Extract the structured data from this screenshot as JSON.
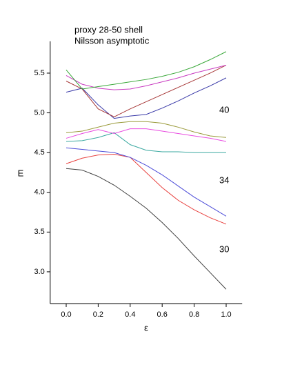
{
  "chart_data": {
    "type": "line",
    "title_lines": [
      "proxy 28-50 shell",
      "Nilsson asymptotic"
    ],
    "xlabel": "ε",
    "ylabel": "E",
    "annotations": [
      "40",
      "34",
      "30"
    ],
    "x": [
      0,
      0.1,
      0.2,
      0.3,
      0.4,
      0.5,
      0.6,
      0.7,
      0.8,
      0.9,
      1.0
    ],
    "series": [
      {
        "color": "#404040",
        "values": [
          4.3,
          4.28,
          4.2,
          4.09,
          3.95,
          3.8,
          3.62,
          3.42,
          3.2,
          2.99,
          2.78
        ]
      },
      {
        "color": "#e8413f",
        "values": [
          4.36,
          4.43,
          4.47,
          4.48,
          4.44,
          4.25,
          4.06,
          3.9,
          3.78,
          3.68,
          3.6
        ]
      },
      {
        "color": "#4b4bd8",
        "values": [
          4.56,
          4.54,
          4.52,
          4.5,
          4.44,
          4.34,
          4.22,
          4.08,
          3.94,
          3.82,
          3.7
        ]
      },
      {
        "color": "#3aa8a0",
        "values": [
          4.64,
          4.65,
          4.69,
          4.75,
          4.6,
          4.53,
          4.51,
          4.51,
          4.5,
          4.5,
          4.5
        ]
      },
      {
        "color": "#e84ae0",
        "values": [
          4.68,
          4.74,
          4.79,
          4.74,
          4.8,
          4.8,
          4.77,
          4.74,
          4.71,
          4.68,
          4.64
        ]
      },
      {
        "color": "#9a9a3a",
        "values": [
          4.75,
          4.77,
          4.82,
          4.87,
          4.89,
          4.89,
          4.87,
          4.82,
          4.76,
          4.71,
          4.69
        ]
      },
      {
        "color": "#3a3aa8",
        "values": [
          5.26,
          5.31,
          5.1,
          4.93,
          4.96,
          4.98,
          5.06,
          5.15,
          5.25,
          5.34,
          5.44
        ]
      },
      {
        "color": "#a83a3a",
        "values": [
          5.4,
          5.3,
          5.05,
          4.95,
          5.05,
          5.14,
          5.23,
          5.32,
          5.41,
          5.5,
          5.6
        ]
      },
      {
        "color": "#c83ac0",
        "values": [
          5.47,
          5.36,
          5.31,
          5.29,
          5.3,
          5.34,
          5.39,
          5.44,
          5.5,
          5.55,
          5.6
        ]
      },
      {
        "color": "#3aa83a",
        "values": [
          5.54,
          5.3,
          5.33,
          5.36,
          5.39,
          5.42,
          5.46,
          5.51,
          5.58,
          5.67,
          5.77
        ]
      }
    ],
    "xlim": [
      -0.1,
      1.1
    ],
    "xticks": [
      {
        "value": 0,
        "label": "0.0"
      },
      0.2,
      0.4,
      0.6,
      0.8,
      {
        "value": 1,
        "label": "1.0"
      }
    ],
    "ylim": [
      2.6,
      5.9
    ],
    "yticks": [
      {
        "value": 3,
        "label": "3.0"
      },
      3.5,
      {
        "value": 4,
        "label": "4.0"
      },
      4.5,
      {
        "value": 5,
        "label": "5.0"
      },
      5.5
    ],
    "grid": false
  }
}
